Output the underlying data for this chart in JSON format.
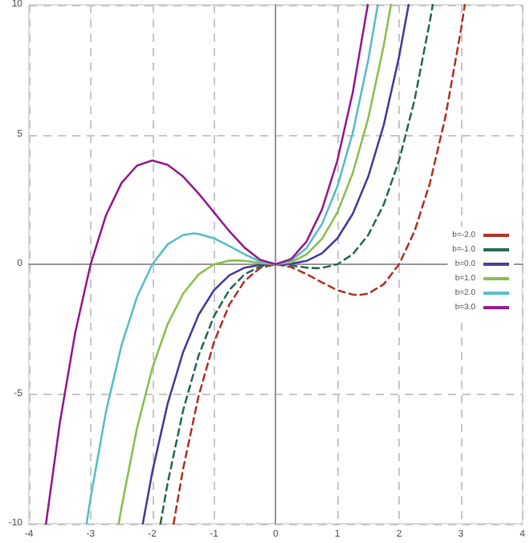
{
  "chart_data": {
    "type": "line",
    "xlim": [
      -4,
      4
    ],
    "ylim": [
      -10,
      10
    ],
    "xticks": [
      -4,
      -3,
      -2,
      -1,
      0,
      1,
      2,
      3,
      4
    ],
    "yticks": [
      -10,
      -5,
      0,
      5,
      10
    ],
    "grid": true,
    "legend": "right",
    "marker": "none",
    "series": [
      {
        "name": "b=-2.0",
        "color": "#b5352b",
        "line_style": "dashed",
        "x": [
          -1.655,
          -1.5,
          -1.25,
          -1,
          -0.75,
          -0.5,
          -0.25,
          0,
          0.25,
          0.5,
          0.75,
          1,
          1.25,
          1.333,
          1.5,
          1.75,
          2,
          2.25,
          2.5,
          2.75,
          3,
          3.065
        ],
        "values": [
          -10,
          -7.88,
          -5.08,
          -3,
          -1.55,
          -0.63,
          -0.14,
          0,
          -0.11,
          -0.38,
          -0.7,
          -1,
          -1.17,
          -1.19,
          -1.13,
          -0.77,
          0,
          1.27,
          3.13,
          5.67,
          9,
          10
        ]
      },
      {
        "name": "b=-1.0",
        "color": "#2a6e50",
        "line_style": "dashed",
        "x": [
          -1.868,
          -1.75,
          -1.5,
          -1.25,
          -1,
          -0.75,
          -0.5,
          -0.25,
          0,
          0.25,
          0.5,
          0.667,
          0.75,
          1,
          1.25,
          1.5,
          1.75,
          2,
          2.25,
          2.5,
          2.545
        ],
        "values": [
          -10,
          -8.42,
          -5.63,
          -3.52,
          -2,
          -0.98,
          -0.38,
          -0.08,
          0,
          -0.05,
          -0.13,
          -0.15,
          -0.14,
          0,
          0.39,
          1.13,
          2.3,
          4,
          6.33,
          9.38,
          10
        ]
      },
      {
        "name": "b=0.0",
        "color": "#4b3f9e",
        "line_style": "solid",
        "x": [
          -2.154,
          -2,
          -1.75,
          -1.5,
          -1.25,
          -1,
          -0.75,
          -0.5,
          -0.25,
          0,
          0.25,
          0.5,
          0.75,
          1,
          1.25,
          1.5,
          1.75,
          2,
          2.154
        ],
        "values": [
          -10,
          -8,
          -5.36,
          -3.38,
          -1.95,
          -1,
          -0.42,
          -0.13,
          -0.02,
          0,
          0.02,
          0.13,
          0.42,
          1,
          1.95,
          3.38,
          5.36,
          8,
          10
        ]
      },
      {
        "name": "b=1.0",
        "color": "#8cc152",
        "line_style": "solid",
        "x": [
          -2.545,
          -2.5,
          -2.25,
          -2,
          -1.75,
          -1.5,
          -1.25,
          -1,
          -0.75,
          -0.667,
          -0.5,
          -0.25,
          0,
          0.25,
          0.5,
          0.75,
          1,
          1.25,
          1.5,
          1.75,
          1.868
        ],
        "values": [
          -10,
          -9.38,
          -6.33,
          -4,
          -2.3,
          -1.13,
          -0.39,
          0,
          0.14,
          0.15,
          0.13,
          0.05,
          0,
          0.08,
          0.38,
          0.98,
          2,
          3.52,
          5.63,
          8.42,
          10
        ]
      },
      {
        "name": "b=2.0",
        "color": "#5bbfc8",
        "line_style": "solid",
        "x": [
          -3.065,
          -3,
          -2.75,
          -2.5,
          -2.25,
          -2,
          -1.75,
          -1.5,
          -1.333,
          -1.25,
          -1,
          -0.75,
          -0.5,
          -0.25,
          0,
          0.25,
          0.5,
          0.75,
          1,
          1.25,
          1.5,
          1.655
        ],
        "values": [
          -10,
          -9,
          -5.67,
          -3.13,
          -1.27,
          0,
          0.77,
          1.13,
          1.19,
          1.17,
          1,
          0.7,
          0.38,
          0.11,
          0,
          0.14,
          0.63,
          1.55,
          3,
          5.08,
          7.88,
          10
        ]
      },
      {
        "name": "b=3.0",
        "color": "#981f8f",
        "line_style": "solid",
        "x": [
          -3.723,
          -3.5,
          -3.25,
          -3,
          -2.75,
          -2.5,
          -2.25,
          -2,
          -1.75,
          -1.5,
          -1.25,
          -1,
          -0.75,
          -0.5,
          -0.25,
          0,
          0.25,
          0.5,
          0.75,
          1,
          1.25,
          1.492
        ],
        "values": [
          -10,
          -6.13,
          -2.64,
          0,
          1.89,
          3.13,
          3.8,
          4,
          3.83,
          3.38,
          2.73,
          2,
          1.27,
          0.63,
          0.17,
          0,
          0.2,
          0.88,
          2.11,
          4,
          6.64,
          10
        ]
      }
    ]
  }
}
